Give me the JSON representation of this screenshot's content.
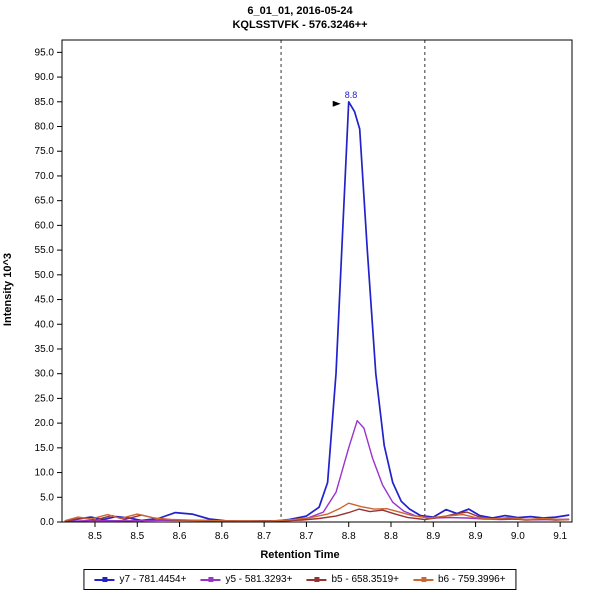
{
  "chart_data": {
    "type": "line",
    "title": "6_01_01, 2016-05-24",
    "subtitle": "KQLSSTVFK - 576.3246++",
    "xlabel": "Retention Time",
    "ylabel": "Intensity 10^3",
    "xlim": [
      8.461,
      9.064
    ],
    "ylim": [
      0,
      97.5
    ],
    "yticks": [
      0,
      5,
      10,
      15,
      20,
      25,
      30,
      35,
      40,
      45,
      50,
      55,
      60,
      65,
      70,
      75,
      80,
      85,
      90,
      95
    ],
    "xticks": [
      {
        "v": 8.5,
        "label": "8.5"
      },
      {
        "v": 8.55,
        "label": "8.5"
      },
      {
        "v": 8.6,
        "label": "8.6"
      },
      {
        "v": 8.65,
        "label": "8.6"
      },
      {
        "v": 8.7,
        "label": "8.7"
      },
      {
        "v": 8.75,
        "label": "8.7"
      },
      {
        "v": 8.8,
        "label": "8.8"
      },
      {
        "v": 8.85,
        "label": "8.8"
      },
      {
        "v": 8.9,
        "label": "8.9"
      },
      {
        "v": 8.95,
        "label": "8.9"
      },
      {
        "v": 9.0,
        "label": "9.0"
      },
      {
        "v": 9.05,
        "label": "9.1"
      }
    ],
    "boundaries": [
      8.72,
      8.89
    ],
    "annotation": {
      "label": "8.8",
      "x": 8.8,
      "y": 85,
      "marker": "black-right-triangle"
    },
    "legend_position": "bottom",
    "series": [
      {
        "name": "y7 - 781.4454+",
        "color": "#2222cc",
        "width": 1.7,
        "points": [
          [
            8.465,
            0.2
          ],
          [
            8.48,
            0.6
          ],
          [
            8.495,
            1.0
          ],
          [
            8.51,
            0.5
          ],
          [
            8.525,
            1.1
          ],
          [
            8.54,
            0.8
          ],
          [
            8.555,
            0.3
          ],
          [
            8.575,
            0.7
          ],
          [
            8.595,
            1.9
          ],
          [
            8.615,
            1.6
          ],
          [
            8.635,
            0.6
          ],
          [
            8.655,
            0.25
          ],
          [
            8.675,
            0.15
          ],
          [
            8.695,
            0.2
          ],
          [
            8.715,
            0.25
          ],
          [
            8.73,
            0.5
          ],
          [
            8.75,
            1.2
          ],
          [
            8.765,
            3.0
          ],
          [
            8.775,
            8.0
          ],
          [
            8.785,
            30.0
          ],
          [
            8.8,
            85.0
          ],
          [
            8.807,
            83.0
          ],
          [
            8.813,
            79.5
          ],
          [
            8.822,
            55.0
          ],
          [
            8.832,
            30.0
          ],
          [
            8.842,
            15.5
          ],
          [
            8.852,
            8.0
          ],
          [
            8.862,
            4.2
          ],
          [
            8.872,
            2.6
          ],
          [
            8.885,
            1.3
          ],
          [
            8.9,
            1.0
          ],
          [
            8.915,
            2.5
          ],
          [
            8.928,
            1.7
          ],
          [
            8.942,
            2.6
          ],
          [
            8.955,
            1.3
          ],
          [
            8.97,
            0.8
          ],
          [
            8.985,
            1.3
          ],
          [
            9.0,
            0.9
          ],
          [
            9.015,
            1.1
          ],
          [
            9.03,
            0.8
          ],
          [
            9.045,
            1.0
          ],
          [
            9.06,
            1.4
          ]
        ]
      },
      {
        "name": "y5 - 581.3293+",
        "color": "#9933cc",
        "width": 1.4,
        "points": [
          [
            8.465,
            0.15
          ],
          [
            8.5,
            0.3
          ],
          [
            8.54,
            0.25
          ],
          [
            8.58,
            0.35
          ],
          [
            8.62,
            0.3
          ],
          [
            8.66,
            0.2
          ],
          [
            8.7,
            0.15
          ],
          [
            8.73,
            0.3
          ],
          [
            8.75,
            0.7
          ],
          [
            8.77,
            2.0
          ],
          [
            8.785,
            6.0
          ],
          [
            8.8,
            15.0
          ],
          [
            8.81,
            20.5
          ],
          [
            8.818,
            19.0
          ],
          [
            8.828,
            13.0
          ],
          [
            8.84,
            7.5
          ],
          [
            8.852,
            4.0
          ],
          [
            8.865,
            2.2
          ],
          [
            8.88,
            1.2
          ],
          [
            8.9,
            0.8
          ],
          [
            8.92,
            0.9
          ],
          [
            8.94,
            0.8
          ],
          [
            8.96,
            0.6
          ],
          [
            8.98,
            0.5
          ],
          [
            9.0,
            0.6
          ],
          [
            9.02,
            0.45
          ],
          [
            9.04,
            0.5
          ],
          [
            9.06,
            0.55
          ]
        ]
      },
      {
        "name": "b5 - 658.3519+",
        "color": "#993333",
        "width": 1.4,
        "points": [
          [
            8.465,
            0.2
          ],
          [
            8.485,
            0.8
          ],
          [
            8.5,
            0.4
          ],
          [
            8.52,
            1.3
          ],
          [
            8.535,
            0.5
          ],
          [
            8.555,
            1.4
          ],
          [
            8.575,
            0.6
          ],
          [
            8.6,
            0.35
          ],
          [
            8.63,
            0.3
          ],
          [
            8.66,
            0.2
          ],
          [
            8.69,
            0.2
          ],
          [
            8.72,
            0.25
          ],
          [
            8.745,
            0.4
          ],
          [
            8.765,
            0.7
          ],
          [
            8.785,
            1.2
          ],
          [
            8.8,
            1.9
          ],
          [
            8.812,
            2.6
          ],
          [
            8.825,
            2.1
          ],
          [
            8.84,
            2.4
          ],
          [
            8.855,
            1.6
          ],
          [
            8.87,
            0.9
          ],
          [
            8.89,
            0.5
          ],
          [
            8.91,
            1.0
          ],
          [
            8.925,
            1.6
          ],
          [
            8.94,
            2.0
          ],
          [
            8.955,
            1.0
          ],
          [
            8.97,
            0.6
          ],
          [
            8.99,
            0.7
          ],
          [
            9.01,
            0.4
          ],
          [
            9.03,
            0.55
          ],
          [
            9.045,
            0.4
          ],
          [
            9.06,
            0.5
          ]
        ]
      },
      {
        "name": "b6 - 759.3996+",
        "color": "#cc6633",
        "width": 1.4,
        "points": [
          [
            8.465,
            0.3
          ],
          [
            8.48,
            1.0
          ],
          [
            8.495,
            0.6
          ],
          [
            8.515,
            1.5
          ],
          [
            8.53,
            0.7
          ],
          [
            8.55,
            1.6
          ],
          [
            8.57,
            0.8
          ],
          [
            8.59,
            0.5
          ],
          [
            8.62,
            0.35
          ],
          [
            8.65,
            0.25
          ],
          [
            8.68,
            0.2
          ],
          [
            8.71,
            0.25
          ],
          [
            8.735,
            0.5
          ],
          [
            8.755,
            0.9
          ],
          [
            8.775,
            1.6
          ],
          [
            8.79,
            2.8
          ],
          [
            8.8,
            3.8
          ],
          [
            8.815,
            3.1
          ],
          [
            8.83,
            2.6
          ],
          [
            8.845,
            2.7
          ],
          [
            8.86,
            2.0
          ],
          [
            8.875,
            1.3
          ],
          [
            8.895,
            0.8
          ],
          [
            8.915,
            1.2
          ],
          [
            8.935,
            1.5
          ],
          [
            8.95,
            0.9
          ],
          [
            8.97,
            0.6
          ],
          [
            8.99,
            0.9
          ],
          [
            9.01,
            0.5
          ],
          [
            9.03,
            0.7
          ],
          [
            9.05,
            0.5
          ],
          [
            9.06,
            0.5
          ]
        ]
      }
    ]
  }
}
